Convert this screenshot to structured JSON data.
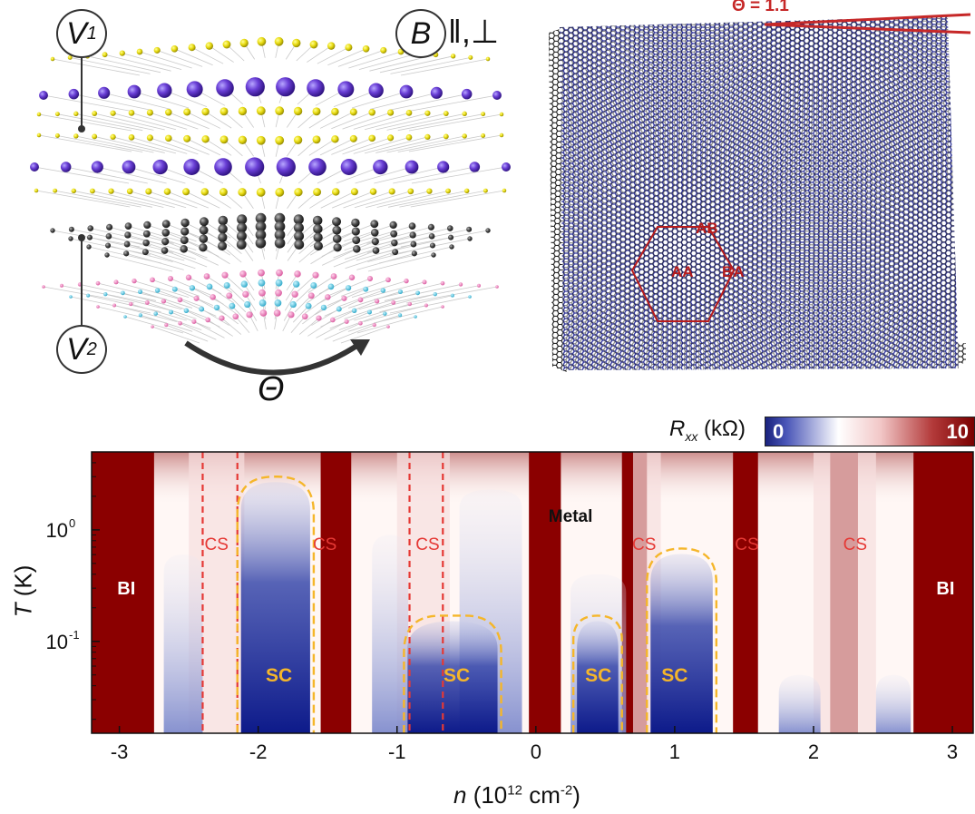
{
  "panel_a": {
    "v1_label": "V",
    "v1_sub": "1",
    "v2_label": "V",
    "v2_sub": "2",
    "b_label": "B",
    "b_suffix": "‖,⊥",
    "theta_label": "Θ"
  },
  "panel_b": {
    "angle_label": "Θ = 1.1",
    "ab_label": "AB",
    "aa_label": "AA",
    "ba_label": "BA",
    "colors": {
      "lattice": "#2a2f96",
      "accent": "#b71c1c"
    }
  },
  "colorbar": {
    "label_main": "R",
    "label_sub": "xx",
    "label_unit": " (kΩ)",
    "min_label": "0",
    "max_label": "10",
    "colors": {
      "low": "#1a237e",
      "mid": "#ffffff",
      "high": "#8b0000"
    }
  },
  "chart_data": {
    "type": "heatmap",
    "xlabel_main": "n",
    "xlabel_unit_pre": " (10",
    "xlabel_exp": "12",
    "xlabel_unit_mid": " cm",
    "xlabel_exp2": "-2",
    "xlabel_unit_post": ")",
    "ylabel_main": "T",
    "ylabel_unit": " (K)",
    "x_ticks": [
      "-3",
      "-2",
      "-1",
      "0",
      "1",
      "2",
      "3"
    ],
    "x_tick_values": [
      -3,
      -2,
      -1,
      0,
      1,
      2,
      3
    ],
    "y_ticks": [
      "10",
      "10"
    ],
    "y_tick_exps": [
      "0",
      "-1"
    ],
    "y_tick_values": [
      1,
      0.1
    ],
    "xlim": [
      -3.2,
      3.15
    ],
    "y_scale": "log",
    "ylim": [
      0.015,
      5
    ],
    "colorscale": {
      "min": 0,
      "max": 10,
      "unit": "kΩ"
    },
    "regions": [
      {
        "label": "BI",
        "n": -2.95,
        "T": 0.3
      },
      {
        "label": "CS",
        "n": -2.3,
        "T": 0.75
      },
      {
        "label": "CS",
        "n": -1.52,
        "T": 0.75
      },
      {
        "label": "CS",
        "n": -0.78,
        "T": 0.75
      },
      {
        "label": "CS",
        "n": 0.78,
        "T": 0.75
      },
      {
        "label": "CS",
        "n": 1.52,
        "T": 0.75
      },
      {
        "label": "CS",
        "n": 2.3,
        "T": 0.75
      },
      {
        "label": "BI",
        "n": 2.95,
        "T": 0.3
      },
      {
        "label": "Metal",
        "n": 0.25,
        "T": 1.35
      },
      {
        "label": "SC",
        "n": -1.85,
        "T": 0.05
      },
      {
        "label": "SC",
        "n": -0.57,
        "T": 0.05
      },
      {
        "label": "SC",
        "n": 0.45,
        "T": 0.05
      },
      {
        "label": "SC",
        "n": 1.0,
        "T": 0.05
      }
    ],
    "cs_boundaries_n": [
      -2.4,
      -2.15,
      -0.91,
      -0.67
    ],
    "sc_domes": [
      {
        "n_range": [
          -2.15,
          -1.6
        ],
        "T_max": 3.0
      },
      {
        "n_range": [
          -0.95,
          -0.25
        ],
        "T_max": 0.17
      },
      {
        "n_range": [
          0.27,
          0.62
        ],
        "T_max": 0.17
      },
      {
        "n_range": [
          0.8,
          1.3
        ],
        "T_max": 0.68
      }
    ]
  }
}
